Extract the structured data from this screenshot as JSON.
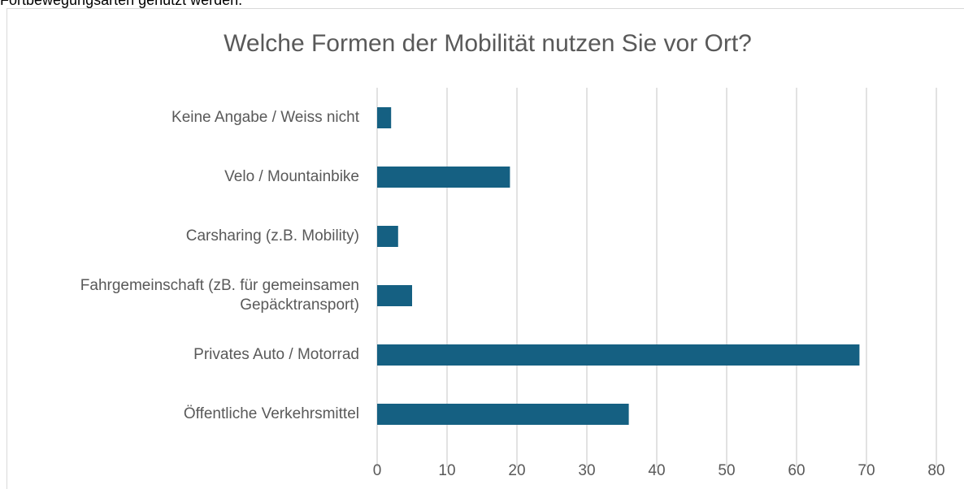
{
  "text": "Fortbewegungsarten genutzt werden.",
  "chart_data": {
    "type": "barh",
    "title": "Welche Formen der Mobilität nutzen Sie vor Ort?",
    "categories": [
      "Keine Angabe / Weiss nicht",
      "Velo / Mountainbike",
      "Carsharing (z.B. Mobility)",
      "Fahrgemeinschaft (zB. für gemeinsamen Gepäcktransport)",
      "Privates Auto / Motorrad",
      "Öffentliche Verkehrsmittel"
    ],
    "values": [
      2,
      19,
      3,
      5,
      69,
      36
    ],
    "color": "#156082",
    "xlim": [
      0,
      80
    ],
    "xticks": [
      0,
      10,
      20,
      30,
      40,
      50,
      60,
      70,
      80
    ],
    "grid": true
  }
}
